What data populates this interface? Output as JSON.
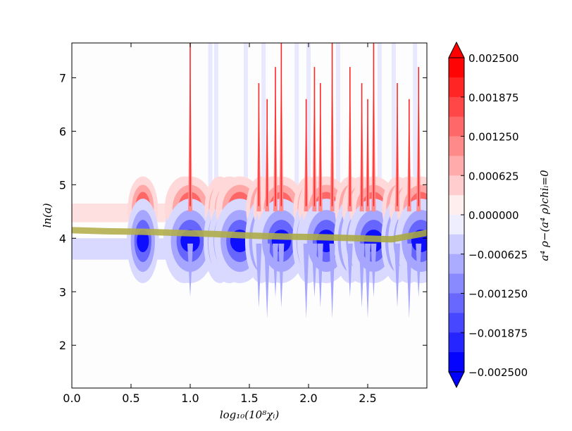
{
  "chart_data": {
    "type": "heatmap",
    "title": "",
    "xlabel": "log₁₀(10⁸χᵢ)",
    "ylabel": "ln(a)",
    "xlim": [
      0.0,
      3.0
    ],
    "ylim": [
      1.2,
      7.65
    ],
    "x_ticks": [
      0.0,
      0.5,
      1.0,
      1.5,
      2.0,
      2.5
    ],
    "x_tick_labels": [
      "0.0",
      "0.5",
      "1.0",
      "1.5",
      "2.0",
      "2.5"
    ],
    "y_ticks": [
      2,
      3,
      4,
      5,
      6,
      7
    ],
    "y_tick_labels": [
      "2",
      "3",
      "4",
      "5",
      "6",
      "7"
    ],
    "colorbar": {
      "label": "a⁴ ρ−(a⁴ ρ)chiᵢ=0",
      "range": [
        -0.0025,
        0.0025
      ],
      "levels": 17,
      "extend": "both",
      "tick_values": [
        -0.0025,
        -0.001875,
        -0.00125,
        -0.000625,
        0.0,
        0.000625,
        0.00125,
        0.001875,
        0.0025
      ],
      "tick_labels": [
        "−0.002500",
        "−0.001875",
        "−0.001250",
        "−0.000625",
        "0.000000",
        "0.000625",
        "0.001250",
        "0.001875",
        "0.002500"
      ],
      "colormap": "bwr",
      "low_color": "#0000ff",
      "mid_color": "#ffffff",
      "high_color": "#ff0000"
    },
    "features": {
      "lobes_x": [
        0.6,
        0.95,
        1.0,
        1.25,
        1.33,
        1.42,
        1.6,
        1.7,
        1.77,
        2.0,
        2.08,
        2.15,
        2.35,
        2.45,
        2.55,
        2.75,
        2.85,
        2.95
      ],
      "positive_band_y": 4.5,
      "negative_band_y": 4.0,
      "spike_x": [
        1.0,
        1.58,
        1.65,
        1.72,
        1.77,
        1.98,
        2.05,
        2.1,
        2.2,
        2.35,
        2.45,
        2.5,
        2.55,
        2.75,
        2.85,
        2.93
      ],
      "track_points": [
        [
          0.0,
          4.15
        ],
        [
          0.3,
          4.13
        ],
        [
          0.6,
          4.12
        ],
        [
          0.9,
          4.1
        ],
        [
          1.2,
          4.08
        ],
        [
          1.5,
          4.05
        ],
        [
          1.8,
          4.03
        ],
        [
          2.1,
          4.02
        ],
        [
          2.4,
          4.0
        ],
        [
          2.7,
          3.98
        ],
        [
          3.0,
          4.1
        ]
      ],
      "track_color": "#b5b050"
    }
  }
}
